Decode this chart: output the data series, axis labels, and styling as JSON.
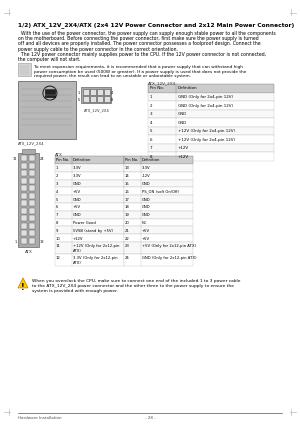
{
  "title": "1/2) ATX_12V_2X4/ATX (2x4 12V Power Connector and 2x12 Main Power Connector)",
  "body_lines": [
    "  With the use of the power connector, the power supply can supply enough stable power to all the components",
    "on the motherboard. Before connecting the power connector, first make sure the power supply is turned",
    "off and all devices are properly installed. The power connector possesses a foolproof design. Connect the",
    "power supply cable to the power connector in the correct orientation.",
    "  The 12V power connector mainly supplies power to the CPU. If the 12V power connector is not connected,",
    "the computer will not start."
  ],
  "note_lines": [
    "To meet expansion requirements, it is recommended that a power supply that can withstand high",
    "power consumption be used (500W or greater). If a power supply is used that does not provide the",
    "required power, the result can lead to an unstable or unbootable system."
  ],
  "atx12v_label": "ATX_12V_2X4",
  "atx12v_conn_label": "ATX_12V_2X4",
  "atx12v_table_title": "ATX_12V_2X4",
  "atx12v_table_headers": [
    "Pin No.",
    "Definition"
  ],
  "atx12v_rows": [
    [
      "1",
      "GND (Only for 2x4-pin 12V)"
    ],
    [
      "2",
      "GND (Only for 2x4-pin 12V)"
    ],
    [
      "3",
      "GND"
    ],
    [
      "4",
      "GND"
    ],
    [
      "5",
      "+12V (Only for 2x4-pin 12V)"
    ],
    [
      "6",
      "+12V (Only for 2x4-pin 12V)"
    ],
    [
      "7",
      "+12V"
    ],
    [
      "8",
      "+12V"
    ]
  ],
  "atx_table_title": "ATX",
  "atx_table_headers": [
    "Pin No.",
    "Definition",
    "Pin No.",
    "Definition"
  ],
  "atx_rows": [
    [
      "1",
      "3.3V",
      "13",
      "3.3V"
    ],
    [
      "2",
      "3.3V",
      "14",
      "-12V"
    ],
    [
      "3",
      "GND",
      "15",
      "GND"
    ],
    [
      "4",
      "+5V",
      "16",
      "PS_ON (soft On/Off)"
    ],
    [
      "5",
      "GND",
      "17",
      "GND"
    ],
    [
      "6",
      "+5V",
      "18",
      "GND"
    ],
    [
      "7",
      "GND",
      "19",
      "GND"
    ],
    [
      "8",
      "Power Good",
      "20",
      "NC"
    ],
    [
      "9",
      "5VSB (stand by +5V)",
      "21",
      "+5V"
    ],
    [
      "10",
      "+12V",
      "22",
      "+5V"
    ],
    [
      "11",
      "+12V (Only for 2x12-pin",
      "23",
      "+5V (Only for 2x12-pin ATX)"
    ],
    [
      "",
      "ATX)",
      "",
      ""
    ],
    [
      "12",
      "3.3V (Only for 2x12-pin",
      "24",
      "GND (Only for 2x12-pin ATX)"
    ],
    [
      "",
      "ATX)",
      "",
      ""
    ]
  ],
  "warning_lines": [
    "When you overclock the CPU, make sure to connect one end of the included 1 to 3 power cable",
    "to the ATX_12V_2X4 power connector and the other three to the power supply to ensure the",
    "system is provided with enough power."
  ],
  "footer_left": "Hardware Installation",
  "footer_center": "- 28 -",
  "bg": "#ffffff",
  "black": "#000000",
  "gray_light": "#e8e8e8",
  "gray_mid": "#c0c0c0",
  "gray_dark": "#888888",
  "header_bg": "#cccccc",
  "corner_color": "#bbbbbb"
}
